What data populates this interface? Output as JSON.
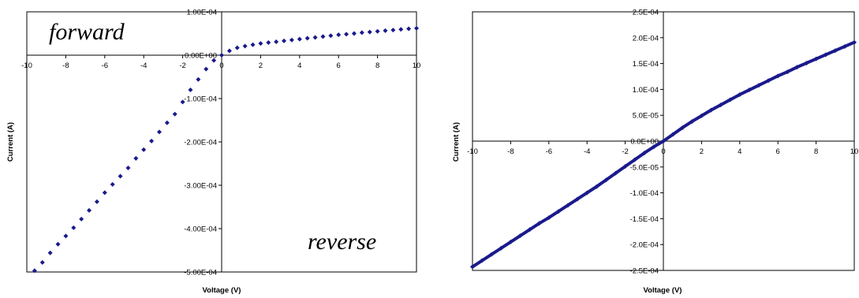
{
  "chart_data": [
    {
      "type": "scatter",
      "xlabel": "Voltage (V)",
      "ylabel": "Current (A)",
      "xlim": [
        -10,
        10
      ],
      "ylim": [
        -0.0005,
        0.0001
      ],
      "x_ticks": [
        -10,
        -8,
        -6,
        -4,
        -2,
        0,
        2,
        4,
        6,
        8,
        10
      ],
      "x_tick_labels": [
        "-10",
        "-8",
        "-6",
        "-4",
        "-2",
        "0",
        "2",
        "4",
        "6",
        "8",
        "10"
      ],
      "y_ticks": [
        0.0001,
        0,
        -0.0001,
        -0.0002,
        -0.0003,
        -0.0004,
        -0.0005
      ],
      "y_tick_labels": [
        "1.00E-04",
        "0.00E+00",
        "-1.00E-04",
        "-2.00E-04",
        "-3.00E-04",
        "-4.00E-04",
        "-5.00E-04"
      ],
      "annotations": [
        "forward",
        "reverse"
      ],
      "grid": false,
      "marker_color": "#1a1a8c",
      "series": [
        {
          "x": [
            -9.6,
            -9.2,
            -8.8,
            -8.4,
            -8.0,
            -7.6,
            -7.2,
            -6.8,
            -6.4,
            -6.0,
            -5.6,
            -5.2,
            -4.8,
            -4.4,
            -4.0,
            -3.6,
            -3.2,
            -2.8,
            -2.4,
            -2.0,
            -1.6,
            -1.2,
            -0.8,
            -0.4,
            0.0,
            0.4,
            0.8,
            1.2,
            1.6,
            2.0,
            2.4,
            2.8,
            3.2,
            3.6,
            4.0,
            4.4,
            4.8,
            5.2,
            5.6,
            6.0,
            6.4,
            6.8,
            7.2,
            7.6,
            8.0,
            8.4,
            8.8,
            9.2,
            9.6,
            10.0
          ],
          "y": [
            -0.000497,
            -0.000478,
            -0.000456,
            -0.000436,
            -0.000417,
            -0.000398,
            -0.000378,
            -0.000358,
            -0.000338,
            -0.000317,
            -0.000298,
            -0.000279,
            -0.00026,
            -0.000238,
            -0.000218,
            -0.000198,
            -0.000177,
            -0.000156,
            -0.000136,
            -0.000108,
            -8e-05,
            -5.6e-05,
            -3.2e-05,
            -1.2e-05,
            0.0,
            1e-05,
            1.7e-05,
            2.1e-05,
            2.4e-05,
            2.7e-05,
            2.9e-05,
            3.1e-05,
            3.3e-05,
            3.5e-05,
            3.7e-05,
            3.9e-05,
            4.1e-05,
            4.3e-05,
            4.5e-05,
            4.7e-05,
            4.85e-05,
            5e-05,
            5.2e-05,
            5.35e-05,
            5.5e-05,
            5.65e-05,
            5.8e-05,
            5.95e-05,
            6.1e-05,
            6.2e-05
          ]
        }
      ]
    },
    {
      "type": "scatter",
      "xlabel": "Voltage (V)",
      "ylabel": "Current (A)",
      "xlim": [
        -10,
        10
      ],
      "ylim": [
        -0.00025,
        0.00025
      ],
      "x_ticks": [
        -10,
        -8,
        -6,
        -4,
        -2,
        0,
        2,
        4,
        6,
        8,
        10
      ],
      "x_tick_labels": [
        "-10",
        "-8",
        "-6",
        "-4",
        "-2",
        "0",
        "2",
        "4",
        "6",
        "8",
        "10"
      ],
      "y_ticks": [
        0.00025,
        0.0002,
        0.00015,
        0.0001,
        5e-05,
        0,
        -5e-05,
        -0.0001,
        -0.00015,
        -0.0002,
        -0.00025
      ],
      "y_tick_labels": [
        "2.5E-04",
        "2.0E-04",
        "1.5E-04",
        "1.0E-04",
        "5.0E-05",
        "0.0E+00",
        "-5.0E-05",
        "-1.0E-04",
        "-1.5E-04",
        "-2.0E-04",
        "-2.5E-04"
      ],
      "grid": false,
      "marker_color": "#1a1a8c",
      "series": [
        {
          "function_samples": "y values follow a smooth, nearly linear increasing trace",
          "x": [
            -10.0,
            -9.5,
            -9.0,
            -8.5,
            -8.0,
            -7.5,
            -7.0,
            -6.5,
            -6.0,
            -5.5,
            -5.0,
            -4.5,
            -4.0,
            -3.5,
            -3.0,
            -2.5,
            -2.0,
            -1.5,
            -1.0,
            -0.5,
            0.0,
            0.5,
            1.0,
            1.5,
            2.0,
            2.5,
            3.0,
            3.5,
            4.0,
            4.5,
            5.0,
            5.5,
            6.0,
            6.5,
            7.0,
            7.5,
            8.0,
            8.5,
            9.0,
            9.5,
            10.0
          ],
          "y": [
            -0.000243,
            -0.000231,
            -0.000219,
            -0.000207,
            -0.000195,
            -0.000183,
            -0.000171,
            -0.000159,
            -0.000148,
            -0.000136,
            -0.000124,
            -0.000112,
            -0.0001,
            -8.8e-05,
            -7.5e-05,
            -6.2e-05,
            -4.9e-05,
            -3.6e-05,
            -2.3e-05,
            -1.1e-05,
            0.0,
            1.3e-05,
            2.6e-05,
            3.8e-05,
            4.9e-05,
            6e-05,
            7e-05,
            8e-05,
            9e-05,
            9.9e-05,
            0.000108,
            0.000117,
            0.000126,
            0.000134,
            0.000143,
            0.000151,
            0.000159,
            0.000167,
            0.000175,
            0.000183,
            0.000191
          ]
        }
      ]
    }
  ]
}
